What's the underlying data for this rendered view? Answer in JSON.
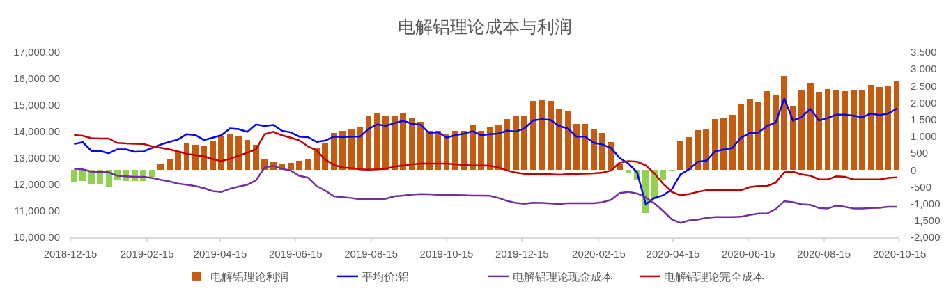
{
  "chart_data": {
    "type": "line",
    "title": "电解铝理论成本与利润",
    "x": [
      "2018-12-18",
      "2018-12-25",
      "2019-01-01",
      "2019-01-08",
      "2019-01-15",
      "2019-01-22",
      "2019-01-29",
      "2019-02-05",
      "2019-02-12",
      "2019-02-19",
      "2019-02-26",
      "2019-03-05",
      "2019-03-12",
      "2019-03-19",
      "2019-03-26",
      "2019-04-02",
      "2019-04-09",
      "2019-04-16",
      "2019-04-23",
      "2019-04-30",
      "2019-05-07",
      "2019-05-14",
      "2019-05-21",
      "2019-05-28",
      "2019-06-04",
      "2019-06-11",
      "2019-06-18",
      "2019-06-25",
      "2019-07-02",
      "2019-07-09",
      "2019-07-16",
      "2019-07-23",
      "2019-07-30",
      "2019-08-06",
      "2019-08-13",
      "2019-08-20",
      "2019-08-27",
      "2019-09-03",
      "2019-09-10",
      "2019-09-17",
      "2019-09-24",
      "2019-10-01",
      "2019-10-08",
      "2019-10-15",
      "2019-10-22",
      "2019-10-29",
      "2019-11-05",
      "2019-11-12",
      "2019-11-19",
      "2019-11-26",
      "2019-12-03",
      "2019-12-10",
      "2019-12-17",
      "2019-12-24",
      "2019-12-31",
      "2020-01-07",
      "2020-01-14",
      "2020-01-21",
      "2020-01-28",
      "2020-02-04",
      "2020-02-11",
      "2020-02-18",
      "2020-02-25",
      "2020-03-03",
      "2020-03-10",
      "2020-03-17",
      "2020-03-24",
      "2020-03-31",
      "2020-04-07",
      "2020-04-14",
      "2020-04-21",
      "2020-04-28",
      "2020-05-05",
      "2020-05-12",
      "2020-05-19",
      "2020-05-26",
      "2020-06-02",
      "2020-06-09",
      "2020-06-16",
      "2020-06-23",
      "2020-06-30",
      "2020-07-07",
      "2020-07-14",
      "2020-07-21",
      "2020-07-28",
      "2020-08-04",
      "2020-08-11",
      "2020-08-18",
      "2020-08-25",
      "2020-09-01",
      "2020-09-08",
      "2020-09-15",
      "2020-09-22",
      "2020-09-29",
      "2020-10-06",
      "2020-10-13"
    ],
    "xlim": [
      "2018-12-15",
      "2020-10-15"
    ],
    "xticks": [
      "2018-12-15",
      "2019-02-15",
      "2019-04-15",
      "2019-06-15",
      "2019-08-15",
      "2019-10-15",
      "2019-12-15",
      "2020-02-15",
      "2020-04-15",
      "2020-06-15",
      "2020-08-15",
      "2020-10-15"
    ],
    "ylim": [
      10000,
      17000
    ],
    "yticks": [
      {
        "value": 10000,
        "label": "10,000.00"
      },
      {
        "value": 11000,
        "label": "11,000.00"
      },
      {
        "value": 12000,
        "label": "12,000.00"
      },
      {
        "value": 13000,
        "label": "13,000.00"
      },
      {
        "value": 14000,
        "label": "14,000.00"
      },
      {
        "value": 15000,
        "label": "15,000.00"
      },
      {
        "value": 16000,
        "label": "16,000.00"
      },
      {
        "value": 17000,
        "label": "17,000.00"
      }
    ],
    "y2lim": [
      -2000,
      3500
    ],
    "y2ticks": [
      {
        "value": -2000,
        "label": "-2,000"
      },
      {
        "value": -1500,
        "label": "-1,500"
      },
      {
        "value": -1000,
        "label": "-1,000"
      },
      -500,
      0,
      500,
      {
        "value": 1000,
        "label": "1,000"
      },
      {
        "value": 1500,
        "label": "1,500"
      },
      {
        "value": 2000,
        "label": "2,000"
      },
      {
        "value": 2500,
        "label": "2,500"
      },
      {
        "value": 3000,
        "label": "3,000"
      },
      {
        "value": 3500,
        "label": "3,500"
      }
    ],
    "series": [
      {
        "name": "电解铝理论利润",
        "type": "bar",
        "axis": "y2",
        "color": "#c55a11",
        "colors": [
          "#92d050",
          "#92d050",
          "#92d050",
          "#92d050",
          "#92d050",
          "#92d050",
          "#92d050",
          "#92d050",
          "#92d050",
          "#92d050",
          "#c55a11",
          "#c55a11",
          "#c55a11",
          "#c55a11",
          "#c55a11",
          "#c55a11",
          "#c55a11",
          "#c55a11",
          "#c55a11",
          "#c55a11",
          "#c55a11",
          "#c55a11",
          "#c55a11",
          "#c55a11",
          "#c55a11",
          "#c55a11",
          "#c55a11",
          "#c55a11",
          "#c55a11",
          "#c55a11",
          "#c55a11",
          "#c55a11",
          "#c55a11",
          "#c55a11",
          "#c55a11",
          "#c55a11",
          "#c55a11",
          "#c55a11",
          "#c55a11",
          "#c55a11",
          "#c55a11",
          "#c55a11",
          "#c55a11",
          "#c55a11",
          "#c55a11",
          "#c55a11",
          "#c55a11",
          "#c55a11",
          "#c55a11",
          "#c55a11",
          "#c55a11",
          "#c55a11",
          "#c55a11",
          "#c55a11",
          "#c55a11",
          "#c55a11",
          "#c55a11",
          "#c55a11",
          "#c55a11",
          "#c55a11",
          "#c55a11",
          "#c55a11",
          "#c55a11",
          "#c55a11",
          "#92d050",
          "#92d050",
          "#92d050",
          "#92d050",
          "#92d050",
          "#92d050",
          "#c55a11",
          "#c55a11",
          "#c55a11",
          "#c55a11",
          "#c55a11",
          "#c55a11",
          "#c55a11",
          "#c55a11",
          "#c55a11",
          "#c55a11",
          "#c55a11",
          "#c55a11",
          "#c55a11",
          "#c55a11",
          "#c55a11",
          "#c55a11",
          "#c55a11",
          "#c55a11",
          "#c55a11",
          "#c55a11",
          "#c55a11",
          "#c55a11",
          "#c55a11",
          "#c55a11",
          "#c55a11",
          "#c55a11"
        ],
        "values": [
          -370,
          -330,
          -400,
          -410,
          -500,
          -310,
          -320,
          -330,
          -330,
          -210,
          170,
          320,
          570,
          790,
          760,
          720,
          880,
          1000,
          1070,
          1000,
          900,
          760,
          310,
          260,
          190,
          210,
          280,
          310,
          660,
          790,
          1100,
          1170,
          1220,
          1260,
          1610,
          1700,
          1620,
          1620,
          1700,
          1550,
          1430,
          1160,
          1170,
          1070,
          1170,
          1170,
          1330,
          1170,
          1260,
          1340,
          1520,
          1610,
          1620,
          2060,
          2100,
          2060,
          1830,
          1760,
          1380,
          1380,
          1210,
          1100,
          830,
          170,
          -100,
          -310,
          -1280,
          -860,
          -310,
          -30,
          850,
          980,
          1190,
          1220,
          1520,
          1540,
          1630,
          1980,
          2120,
          2020,
          2340,
          2240,
          2790,
          1910,
          2380,
          2590,
          2320,
          2400,
          2390,
          2340,
          2380,
          2390,
          2520,
          2460,
          2480,
          2630
        ]
      },
      {
        "name": "平均价:铝",
        "color": "#0000ff",
        "values": [
          13530,
          13600,
          13270,
          13270,
          13180,
          13330,
          13330,
          13240,
          13250,
          13380,
          13510,
          13610,
          13700,
          13900,
          13870,
          13680,
          13770,
          13860,
          14120,
          14090,
          13990,
          14270,
          14210,
          14250,
          14030,
          13970,
          13810,
          13790,
          13610,
          13660,
          13810,
          13790,
          13810,
          13810,
          14100,
          14270,
          14220,
          14320,
          14410,
          14290,
          14260,
          13940,
          13980,
          13770,
          13860,
          13920,
          14010,
          13860,
          13900,
          13930,
          14030,
          14000,
          14120,
          14420,
          14470,
          14440,
          14210,
          14120,
          13810,
          13810,
          13580,
          13510,
          13380,
          13000,
          12790,
          12460,
          11250,
          11490,
          11590,
          11810,
          12380,
          12570,
          12860,
          12900,
          13250,
          13320,
          13380,
          13770,
          13940,
          13960,
          14210,
          14340,
          15250,
          14420,
          14550,
          14860,
          14420,
          14510,
          14640,
          14640,
          14600,
          14540,
          14680,
          14620,
          14680,
          14870
        ]
      },
      {
        "name": "电解铝理论现金成本",
        "color": "#7030a0",
        "values": [
          12590,
          12570,
          12480,
          12480,
          12460,
          12330,
          12310,
          12290,
          12290,
          12250,
          12180,
          12120,
          12030,
          11990,
          11940,
          11860,
          11750,
          11720,
          11840,
          11920,
          11990,
          12160,
          12640,
          12710,
          12590,
          12530,
          12330,
          12260,
          11940,
          11770,
          11550,
          11520,
          11490,
          11440,
          11440,
          11440,
          11460,
          11550,
          11580,
          11620,
          11640,
          11630,
          11610,
          11610,
          11600,
          11590,
          11580,
          11580,
          11570,
          11490,
          11380,
          11300,
          11270,
          11310,
          11300,
          11280,
          11260,
          11290,
          11290,
          11290,
          11290,
          11330,
          11420,
          11680,
          11720,
          11660,
          11510,
          11290,
          11000,
          10680,
          10550,
          10640,
          10670,
          10740,
          10770,
          10770,
          10770,
          10780,
          10850,
          10900,
          10900,
          11070,
          11370,
          11330,
          11250,
          11230,
          11110,
          11090,
          11200,
          11160,
          11090,
          11090,
          11110,
          11120,
          11160,
          11160
        ]
      },
      {
        "name": "电解铝理论完全成本",
        "color": "#c00000",
        "values": [
          13870,
          13840,
          13750,
          13740,
          13740,
          13570,
          13550,
          13540,
          13530,
          13440,
          13390,
          13330,
          13250,
          13160,
          13110,
          13060,
          12960,
          12880,
          12970,
          13090,
          13200,
          13330,
          13900,
          13990,
          13860,
          13770,
          13670,
          13440,
          13290,
          12940,
          12740,
          12640,
          12620,
          12570,
          12560,
          12570,
          12590,
          12680,
          12720,
          12760,
          12790,
          12790,
          12790,
          12790,
          12760,
          12740,
          12720,
          12720,
          12710,
          12640,
          12530,
          12450,
          12400,
          12400,
          12410,
          12390,
          12370,
          12390,
          12400,
          12410,
          12420,
          12450,
          12530,
          12830,
          12880,
          12860,
          12720,
          12420,
          12030,
          11720,
          11590,
          11640,
          11720,
          11780,
          11780,
          11780,
          11780,
          11780,
          11900,
          11940,
          11940,
          12070,
          12460,
          12480,
          12380,
          12330,
          12200,
          12190,
          12310,
          12290,
          12190,
          12190,
          12190,
          12190,
          12250,
          12270
        ]
      }
    ],
    "legend": "bottom",
    "grid": false
  }
}
